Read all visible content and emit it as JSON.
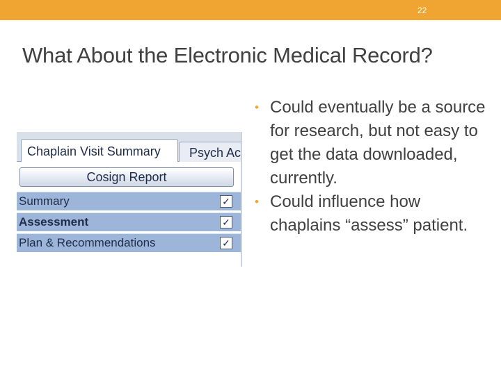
{
  "slide": {
    "number": "22",
    "title": "What About the Electronic Medical Record?",
    "accent_color": "#f0a431"
  },
  "screenshot": {
    "tabs": [
      "Chaplain Visit Summary",
      "Psych Ac"
    ],
    "cosign_label": "Cosign Report",
    "rows": [
      {
        "label": "Summary",
        "checked": true
      },
      {
        "label": "Assessment",
        "checked": true
      },
      {
        "label": "Plan & Recommendations",
        "checked": true
      }
    ],
    "check_glyph": "✓"
  },
  "bullets": [
    "Could eventually be a source for research, but not easy to get the data downloaded, currently.",
    "Could influence how chaplains “assess” patient."
  ],
  "bullet_glyph": "•"
}
